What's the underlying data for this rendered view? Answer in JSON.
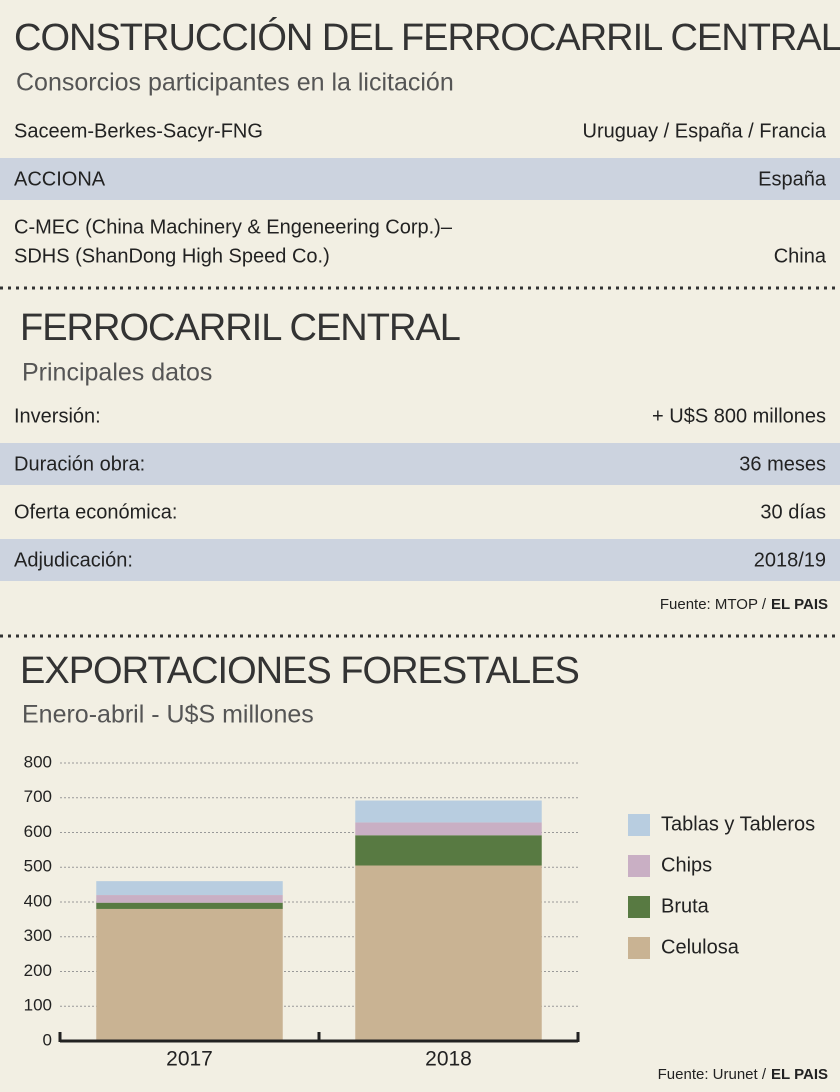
{
  "section_1": {
    "title": "CONSTRUCCIÓN DEL FERROCARRIL CENTRAL",
    "subtitle": "Consorcios participantes en la licitación",
    "rows": [
      {
        "name": [
          "Saceem-Berkes-Sacyr-FNG"
        ],
        "value": "Uruguay / España / Francia"
      },
      {
        "name": [
          "ACCIONA"
        ],
        "value": "España"
      },
      {
        "name": [
          "C-MEC (China Machinery & Engeneering Corp.)–",
          "SDHS (ShanDong High Speed Co.)"
        ],
        "value": "China"
      }
    ]
  },
  "section_2": {
    "title": "FERROCARRIL CENTRAL",
    "subtitle": "Principales datos",
    "rows": [
      {
        "name": [
          "Inversión:"
        ],
        "value": "+ U$S 800 millones"
      },
      {
        "name": [
          "Duración obra:"
        ],
        "value": "36 meses"
      },
      {
        "name": [
          "Oferta económica:"
        ],
        "value": "30 días"
      },
      {
        "name": [
          "Adjudicación:"
        ],
        "value": "2018/19"
      }
    ],
    "source": {
      "text": "Fuente: MTOP /",
      "brand": "EL PAIS"
    }
  },
  "chart_data": {
    "type": "stacked_bar",
    "title": "EXPORTACIONES FORESTALES",
    "subtitle": "Enero-abril - U$S millones",
    "categories": [
      "2017",
      "2018"
    ],
    "series": [
      {
        "name": "Celulosa",
        "color": "#c9b393",
        "values": [
          380,
          505
        ]
      },
      {
        "name": "Bruta",
        "color": "#587a42",
        "values": [
          18,
          87
        ]
      },
      {
        "name": "Chips",
        "color": "#c9afc4",
        "values": [
          22,
          37
        ]
      },
      {
        "name": "Tablas y Tableros",
        "color": "#b8cde0",
        "values": [
          40,
          63
        ]
      }
    ],
    "ylim": [
      0,
      800
    ],
    "yticks": [
      0,
      100,
      200,
      300,
      400,
      500,
      600,
      700,
      800
    ],
    "grid": true,
    "legend": "right",
    "source": {
      "text": "Fuente: Urunet /",
      "brand": "EL PAIS"
    }
  }
}
